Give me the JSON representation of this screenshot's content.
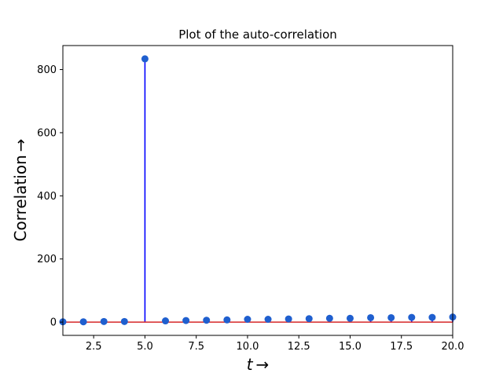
{
  "chart_data": {
    "type": "stem",
    "title": "Plot of the auto-correlation",
    "xlabel": "t →",
    "ylabel": "Correlation →",
    "xlim": [
      1,
      20
    ],
    "ylim": [
      -42,
      876
    ],
    "xticks": [
      2.5,
      5.0,
      7.5,
      10.0,
      12.5,
      15.0,
      17.5,
      20.0
    ],
    "xtick_labels": [
      "2.5",
      "5.0",
      "7.5",
      "10.0",
      "12.5",
      "15.0",
      "17.5",
      "20.0"
    ],
    "yticks": [
      0,
      200,
      400,
      600,
      800
    ],
    "ytick_labels": [
      "0",
      "200",
      "400",
      "600",
      "800"
    ],
    "baseline": 0,
    "grid": false,
    "colors": {
      "stem": "#0000ff",
      "marker": "#1f5fcf",
      "baseline": "#d62728"
    },
    "points": [
      {
        "x": 1,
        "y": 1
      },
      {
        "x": 2,
        "y": 1
      },
      {
        "x": 3,
        "y": 2
      },
      {
        "x": 4,
        "y": 2
      },
      {
        "x": 5,
        "y": 834
      },
      {
        "x": 6,
        "y": 4
      },
      {
        "x": 7,
        "y": 5
      },
      {
        "x": 8,
        "y": 6
      },
      {
        "x": 9,
        "y": 7
      },
      {
        "x": 10,
        "y": 9
      },
      {
        "x": 11,
        "y": 9
      },
      {
        "x": 12,
        "y": 10
      },
      {
        "x": 13,
        "y": 11
      },
      {
        "x": 14,
        "y": 12
      },
      {
        "x": 15,
        "y": 12
      },
      {
        "x": 16,
        "y": 14
      },
      {
        "x": 17,
        "y": 14
      },
      {
        "x": 18,
        "y": 15
      },
      {
        "x": 19,
        "y": 15
      },
      {
        "x": 20,
        "y": 16
      }
    ]
  }
}
